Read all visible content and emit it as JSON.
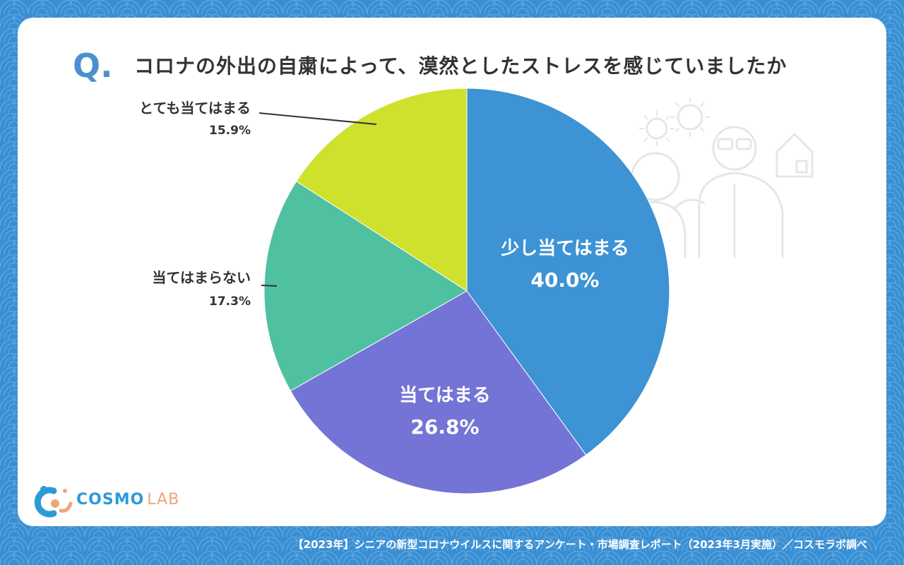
{
  "question": {
    "mark": "Q.",
    "title": "コロナの外出の自粛によって、漠然としたストレスを感じていましたか"
  },
  "chart_data": {
    "type": "pie",
    "slices": [
      {
        "label": "少し当てはまる",
        "value": 40.0,
        "display": "40.0%",
        "color": "#3d93d3",
        "label_position": "inside"
      },
      {
        "label": "当てはまる",
        "value": 26.8,
        "display": "26.8%",
        "color": "#7474d6",
        "label_position": "inside"
      },
      {
        "label": "当てはまらない",
        "value": 17.3,
        "display": "17.3%",
        "color": "#4fc1a0",
        "label_position": "outside"
      },
      {
        "label": "とても当てはまる",
        "value": 15.9,
        "display": "15.9%",
        "color": "#cfe02d",
        "label_position": "outside"
      }
    ],
    "start_angle": "12 o'clock",
    "direction": "clockwise"
  },
  "logo": {
    "name": "COSMO",
    "suffix": "LAB"
  },
  "footer": "【2023年】シニアの新型コロナウイルスに関するアンケート・市場調査レポート（2023年3月実施）／コスモラボ調べ"
}
